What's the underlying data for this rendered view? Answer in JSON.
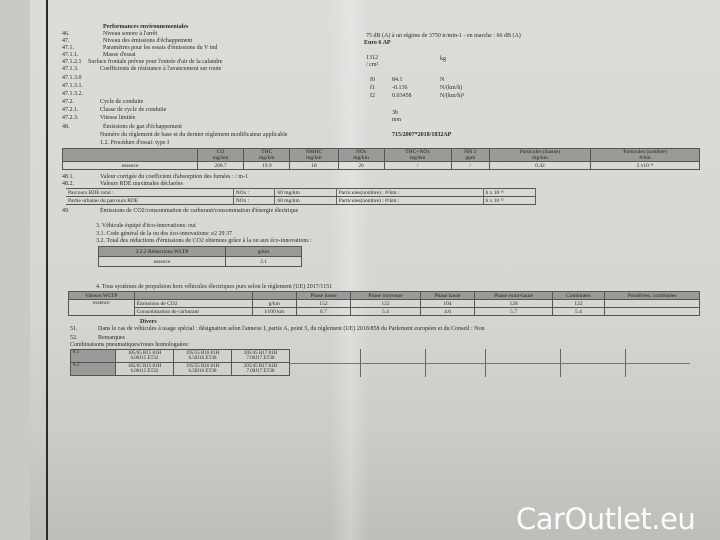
{
  "title": "Performances environnementales",
  "rows": [
    {
      "num": "46.",
      "label": "Niveau sonore à l'arrêt"
    },
    {
      "num": "47.",
      "label": "Niveau des émissions d'échappement"
    },
    {
      "num": "47.1.",
      "label": "Paramètres pour les essais d'émissions du V ind"
    },
    {
      "num": "47.1.1.",
      "label": "Masse d'essai"
    },
    {
      "num": "47.1.2.1",
      "label": "Surface frontale prévue pour l'entrée d'air de la calandre"
    },
    {
      "num": "47.1.3.",
      "label": "Coefficients de résistance à l'avancement sur route"
    },
    {
      "num": "47.1.3.0",
      "label": ""
    },
    {
      "num": "47.1.3.1.",
      "label": ""
    },
    {
      "num": "47.1.3.2.",
      "label": ""
    },
    {
      "num": "47.2.",
      "label": "Cycle de conduite"
    },
    {
      "num": "47.2.1.",
      "label": "Classe de cycle de conduite"
    },
    {
      "num": "47.2.3.",
      "label": "Vitesse limitée"
    },
    {
      "num": "48.",
      "label": "Émissions de gaz d'échappement"
    }
  ],
  "regulation_label": "Numéro du règlement de base et du dernier règlement modificateur applicable",
  "procedure": "1.2. Procédure d'essai: type I",
  "values": {
    "noise": "75 dB (A)  à un régime de 3750 tr/min-1 - en marche : 66 dB (A)",
    "euro": "Euro 6 AP",
    "mass": "1312",
    "mass_unit": "kg",
    "surface": "/ cm²",
    "f0_sym": "f0",
    "f0": "84.1",
    "f0_unit": "N",
    "f1_sym": "f1",
    "f1": "-0.136",
    "f1_unit": "N/(km/h)",
    "f2_sym": "f2",
    "f2": "0.03458",
    "f2_unit": "N/(km/h)²",
    "cycle_class": "3b",
    "speed_limited": "non",
    "regulation": "715/2007*2018/1832AP"
  },
  "emissions_table": {
    "headers": [
      [
        "CO",
        "mg/km"
      ],
      [
        "THC",
        "mg/km"
      ],
      [
        "NMHC",
        "mg/km"
      ],
      [
        "NOx",
        "mg/km"
      ],
      [
        "THC+NOx",
        "mg/km"
      ],
      [
        "NH 3",
        "ppm"
      ],
      [
        "Particules (masse)",
        "mg/km"
      ],
      [
        "Particules (nombre)",
        "#/km"
      ]
    ],
    "row": {
      "fuel": "essence",
      "values": [
        "208.7",
        "19.9",
        "18",
        "26",
        "/",
        "/",
        "0.42",
        "3 x10 ¹¹"
      ]
    }
  },
  "r48_1": {
    "num": "48.1.",
    "label": "Valeur corrigée du coefficient d'absorption des fumées : / m-1"
  },
  "r48_2": {
    "num": "48.2.",
    "label": "Valeurs RDE maximales déclarées"
  },
  "rde": [
    [
      "Parcours RDE total :",
      "NOx :",
      "60 mg/km",
      "Particules(nombre) : #/km :",
      "6 x 10 ¹¹"
    ],
    [
      "Partie urbaine du parcours RDE",
      "NOx :",
      "60 mg/km",
      "Particules(nombre) : #/km :",
      "6 x 10 ¹¹"
    ]
  ],
  "r49": {
    "num": "49.",
    "label": "Émissions de CO2/consommation de carburant/consommation d'énergie électrique"
  },
  "eco": {
    "l3": "3. Véhicule équipé d'éco-innovations: oui",
    "l31": "3.1. Code général de la ou des éco-innovations: e2 29 37",
    "l32": "3.2. Total des réductions d'émissions de CO2 obtenues grâce à la ou aux éco-innovations :",
    "table": {
      "h1": "3.2.2 Réductions WLTP",
      "h2": "g/km",
      "fuel": "essence",
      "value": "2.1"
    }
  },
  "wltp": {
    "intro": "4. Tous systèmes de propulsion hors véhicules électriques purs selon le règlement (UE) 2017/1151",
    "headers": [
      "Valeurs WLTP",
      "",
      "",
      "Phase basse",
      "Phase moyenne",
      "Phase haute",
      "Phase extra-haute",
      "Combinées",
      "Pondérées, combinées"
    ],
    "fuel": "essence",
    "rows": [
      {
        "label": "Émissions de CO2",
        "unit": "g/km",
        "values": [
          "152",
          "122",
          "104",
          "128",
          "122",
          ""
        ]
      },
      {
        "label": "Consommation de carburant",
        "unit": "l/100 km",
        "values": [
          "6.7",
          "5.4",
          "4.6",
          "5.7",
          "5.4",
          ""
        ]
      }
    ]
  },
  "divers": {
    "title": "Divers",
    "r51": {
      "num": "51.",
      "label": "Dans le cas de véhicules à usage spécial : désignation selon l'annexe I, partie A, point 5, du règlement (UE) 2018/858 du Parlement européen et du Conseil : Non"
    },
    "r52": {
      "num": "52.",
      "label": "Remarques"
    },
    "tyres_label": "Combinaisons pneumatiques/roues homologuées:",
    "tyres": [
      {
        "id": "8.1",
        "cells": [
          [
            "185/65 R15 81H",
            "6.00J15 ET32"
          ],
          [
            "195/55 R16 81H",
            "6.50J16 ET38"
          ],
          [
            "205/45 R17 81H",
            "7.00J17 ET38"
          ]
        ]
      },
      {
        "id": "8.2",
        "cells": [
          [
            "185/65 R15 81H",
            "6.00J15 ET32"
          ],
          [
            "195/55 R16 81H",
            "6.50J16 ET38"
          ],
          [
            "205/45 R17 81H",
            "7.00J17 ET38"
          ]
        ]
      }
    ]
  },
  "watermark": "CarOutlet.eu"
}
